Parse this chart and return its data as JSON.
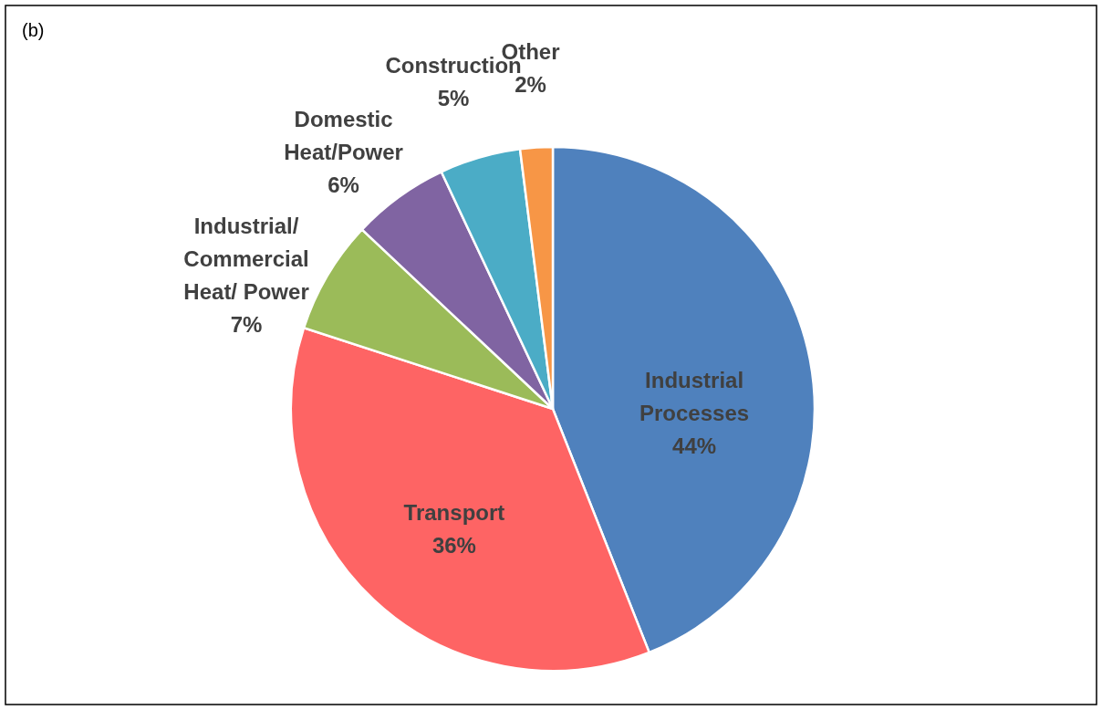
{
  "chart_data": {
    "type": "pie",
    "title": "(b)",
    "categories": [
      "Industrial\nProcesses",
      "Transport",
      "Industrial/\nCommercial\nHeat/ Power",
      "Domestic\nHeat/Power",
      "Construction",
      "Other"
    ],
    "values": [
      44,
      36,
      7,
      6,
      5,
      2
    ],
    "value_labels": [
      "44%",
      "36%",
      "7%",
      "6%",
      "5%",
      "2%"
    ],
    "colors": [
      "#4f81bd",
      "#fe6464",
      "#9bbb59",
      "#8064a2",
      "#4bacc6",
      "#f79646"
    ]
  }
}
